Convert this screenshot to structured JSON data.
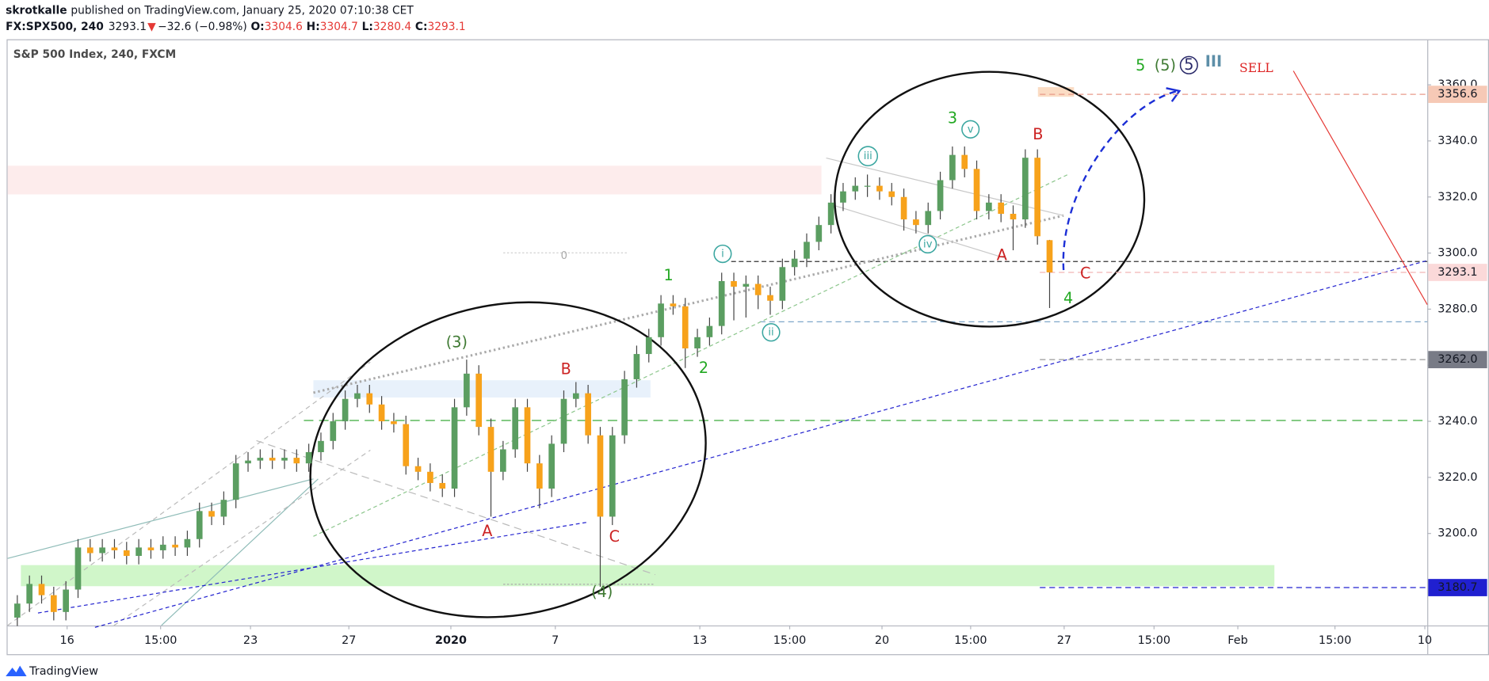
{
  "header": {
    "author": "skrotkalle",
    "published": "published on TradingView.com, January 25, 2020 07:10:38 CET",
    "symbol": "FX:SPX500, 240",
    "last": "3293.1",
    "arrow": "▼",
    "change": "−32.6 (−0.98%)",
    "o_label": "O:",
    "o": "3304.6",
    "h_label": "H:",
    "h": "3304.7",
    "l_label": "L:",
    "l": "3280.4",
    "c_label": "C:",
    "c": "3293.1"
  },
  "footer": {
    "brand": "TradingView"
  },
  "chart_data": {
    "type": "candlestick",
    "title": "S&P 500 Index, 240, FXCM",
    "up_color": "#5b9e61",
    "down_color": "#f7a21b",
    "xlim": [
      -0.8,
      116.1
    ],
    "xticks": [
      {
        "value": 4.1,
        "label": "16"
      },
      {
        "value": 11.8,
        "label": "15:00"
      },
      {
        "value": 19.2,
        "label": "23"
      },
      {
        "value": 27.3,
        "label": "27"
      },
      {
        "value": 35.7,
        "label": "2020"
      },
      {
        "value": 44.3,
        "label": "7"
      },
      {
        "value": 56.2,
        "label": "13"
      },
      {
        "value": 63.6,
        "label": "15:00"
      },
      {
        "value": 71.2,
        "label": "20"
      },
      {
        "value": 78.5,
        "label": "15:00"
      },
      {
        "value": 86.2,
        "label": "27"
      },
      {
        "value": 93.6,
        "label": "15:00"
      },
      {
        "value": 100.5,
        "label": "Feb"
      },
      {
        "value": 108.5,
        "label": "15:00"
      },
      {
        "value": 115.9,
        "label": "10"
      }
    ],
    "ylim": [
      3167.2,
      3375.9
    ],
    "yticks": [
      {
        "value": 3200,
        "label": "3200.0"
      },
      {
        "value": 3220,
        "label": "3220.0"
      },
      {
        "value": 3240,
        "label": "3240.0"
      },
      {
        "value": 3260,
        "label": "3260.0"
      },
      {
        "value": 3280,
        "label": "3280.0"
      },
      {
        "value": 3300,
        "label": "3300.0"
      },
      {
        "value": 3320,
        "label": "3320.0"
      },
      {
        "value": 3340,
        "label": "3340.0"
      },
      {
        "value": 3360,
        "label": "3360.0"
      }
    ],
    "open": [
      3170,
      3175,
      3182,
      3178,
      3172,
      3180,
      3195,
      3193,
      3195,
      3194,
      3192,
      3195,
      3194,
      3196,
      3195,
      3198,
      3208,
      3206,
      3212,
      3225,
      3226,
      3227,
      3226,
      3227,
      3225,
      3229,
      3233,
      3240,
      3248,
      3250,
      3246,
      3240,
      3239,
      3224,
      3222,
      3218,
      3216,
      3245,
      3257,
      3238,
      3222,
      3230,
      3245,
      3225,
      3216,
      3232,
      3248,
      3250,
      3235,
      3206,
      3235,
      3255,
      3264,
      3270,
      3282,
      3281,
      3266,
      3270,
      3274,
      3290,
      3288,
      3289,
      3285,
      3283,
      3295,
      3298,
      3304,
      3310,
      3318,
      3322,
      3324,
      3324,
      3322,
      3320,
      3312,
      3310,
      3315,
      3326,
      3335,
      3330,
      3315,
      3318,
      3314,
      3312,
      3334,
      3304.6
    ],
    "high": [
      3178,
      3185,
      3185,
      3181,
      3183,
      3198,
      3198,
      3198,
      3198,
      3197,
      3198,
      3198,
      3199,
      3199,
      3201,
      3211,
      3211,
      3215,
      3228,
      3229,
      3230,
      3230,
      3230,
      3230,
      3232,
      3236,
      3243,
      3251,
      3253,
      3253,
      3249,
      3243,
      3242,
      3227,
      3225,
      3221,
      3248,
      3262,
      3260,
      3241,
      3233,
      3248,
      3248,
      3228,
      3235,
      3251,
      3254,
      3253,
      3238,
      3238,
      3258,
      3267,
      3273,
      3285,
      3285,
      3284,
      3273,
      3277,
      3293,
      3293,
      3292,
      3292,
      3288,
      3298,
      3301,
      3307,
      3313,
      3321,
      3325,
      3327,
      3328,
      3327,
      3325,
      3323,
      3315,
      3318,
      3329,
      3338,
      3338,
      3333,
      3321,
      3321,
      3317,
      3337,
      3337,
      3304.7
    ],
    "low": [
      3167,
      3172,
      3175,
      3169,
      3169,
      3177,
      3190,
      3190,
      3191,
      3189,
      3189,
      3191,
      3191,
      3192,
      3192,
      3195,
      3203,
      3203,
      3209,
      3222,
      3223,
      3223,
      3223,
      3222,
      3222,
      3226,
      3230,
      3237,
      3245,
      3243,
      3237,
      3236,
      3221,
      3219,
      3215,
      3213,
      3213,
      3242,
      3235,
      3206,
      3219,
      3227,
      3222,
      3209,
      3213,
      3229,
      3245,
      3232,
      3181,
      3203,
      3232,
      3252,
      3261,
      3267,
      3278,
      3259,
      3263,
      3267,
      3271,
      3276,
      3277,
      3280,
      3278,
      3280,
      3292,
      3295,
      3301,
      3307,
      3315,
      3319,
      3320,
      3319,
      3317,
      3308,
      3307,
      3307,
      3312,
      3323,
      3327,
      3312,
      3312,
      3311,
      3301,
      3309,
      3303,
      3280.4
    ],
    "close": [
      3175,
      3182,
      3178,
      3172,
      3180,
      3195,
      3193,
      3195,
      3194,
      3192,
      3195,
      3194,
      3196,
      3195,
      3198,
      3208,
      3206,
      3212,
      3225,
      3226,
      3227,
      3226,
      3227,
      3225,
      3229,
      3233,
      3240,
      3248,
      3250,
      3246,
      3240,
      3239,
      3224,
      3222,
      3218,
      3216,
      3245,
      3257,
      3238,
      3222,
      3230,
      3245,
      3225,
      3216,
      3232,
      3248,
      3250,
      3235,
      3206,
      3235,
      3255,
      3264,
      3270,
      3282,
      3281,
      3266,
      3270,
      3274,
      3290,
      3288,
      3289,
      3285,
      3283,
      3295,
      3298,
      3304,
      3310,
      3318,
      3322,
      3324,
      3324,
      3322,
      3320,
      3312,
      3310,
      3315,
      3326,
      3335,
      3330,
      3315,
      3318,
      3314,
      3312,
      3334,
      3306,
      3293.1
    ],
    "price_labels": [
      {
        "value": 3356.6,
        "color": "#f6c9b6",
        "text_color": "#131722",
        "line": "#e89a8a"
      },
      {
        "value": 3293.1,
        "color": "#fbd9d9",
        "text_color": "#131722",
        "line": "#f2b4b4"
      },
      {
        "value": 3262,
        "label": "3262.0",
        "color": "#787b86",
        "text_color": "#ffffff",
        "line": "#9a9a9a"
      },
      {
        "value": 3180.7,
        "color": "#2020d0",
        "text_color": "#ffffff",
        "line": "#2020d0"
      }
    ],
    "annotations": [
      {
        "text": "(3)",
        "color": "#3f7a33"
      },
      {
        "text": "A",
        "color": "#cc2222"
      },
      {
        "text": "B",
        "color": "#cc2222"
      },
      {
        "text": "C",
        "color": "#cc2222"
      },
      {
        "text": "(4)",
        "color": "#3f7a33"
      },
      {
        "text": "1",
        "color": "#22a822"
      },
      {
        "text": "2",
        "color": "#22a822"
      },
      {
        "text": "i",
        "color": "#3aa6a0",
        "circled": true
      },
      {
        "text": "ii",
        "color": "#3aa6a0",
        "circled": true
      },
      {
        "text": "iii",
        "color": "#3aa6a0",
        "circled": true
      },
      {
        "text": "iv",
        "color": "#3aa6a0",
        "circled": true
      },
      {
        "text": "v",
        "color": "#3aa6a0",
        "circled": true
      },
      {
        "text": "3",
        "color": "#22a822"
      },
      {
        "text": "A",
        "color": "#cc2222"
      },
      {
        "text": "B",
        "color": "#cc2222"
      },
      {
        "text": "4",
        "color": "#22a822"
      },
      {
        "text": "C",
        "color": "#cc2222"
      },
      {
        "text": "5",
        "color": "#22a822"
      },
      {
        "text": "(5)",
        "color": "#3f7a33"
      },
      {
        "text": "5",
        "color": "#2a2a6a",
        "circled": true
      },
      {
        "text": "III",
        "color": "#5d8fa8"
      },
      {
        "text": "SELL",
        "color": "#dd2222"
      },
      {
        "text": "0",
        "color": "#aaaaaa"
      }
    ]
  }
}
